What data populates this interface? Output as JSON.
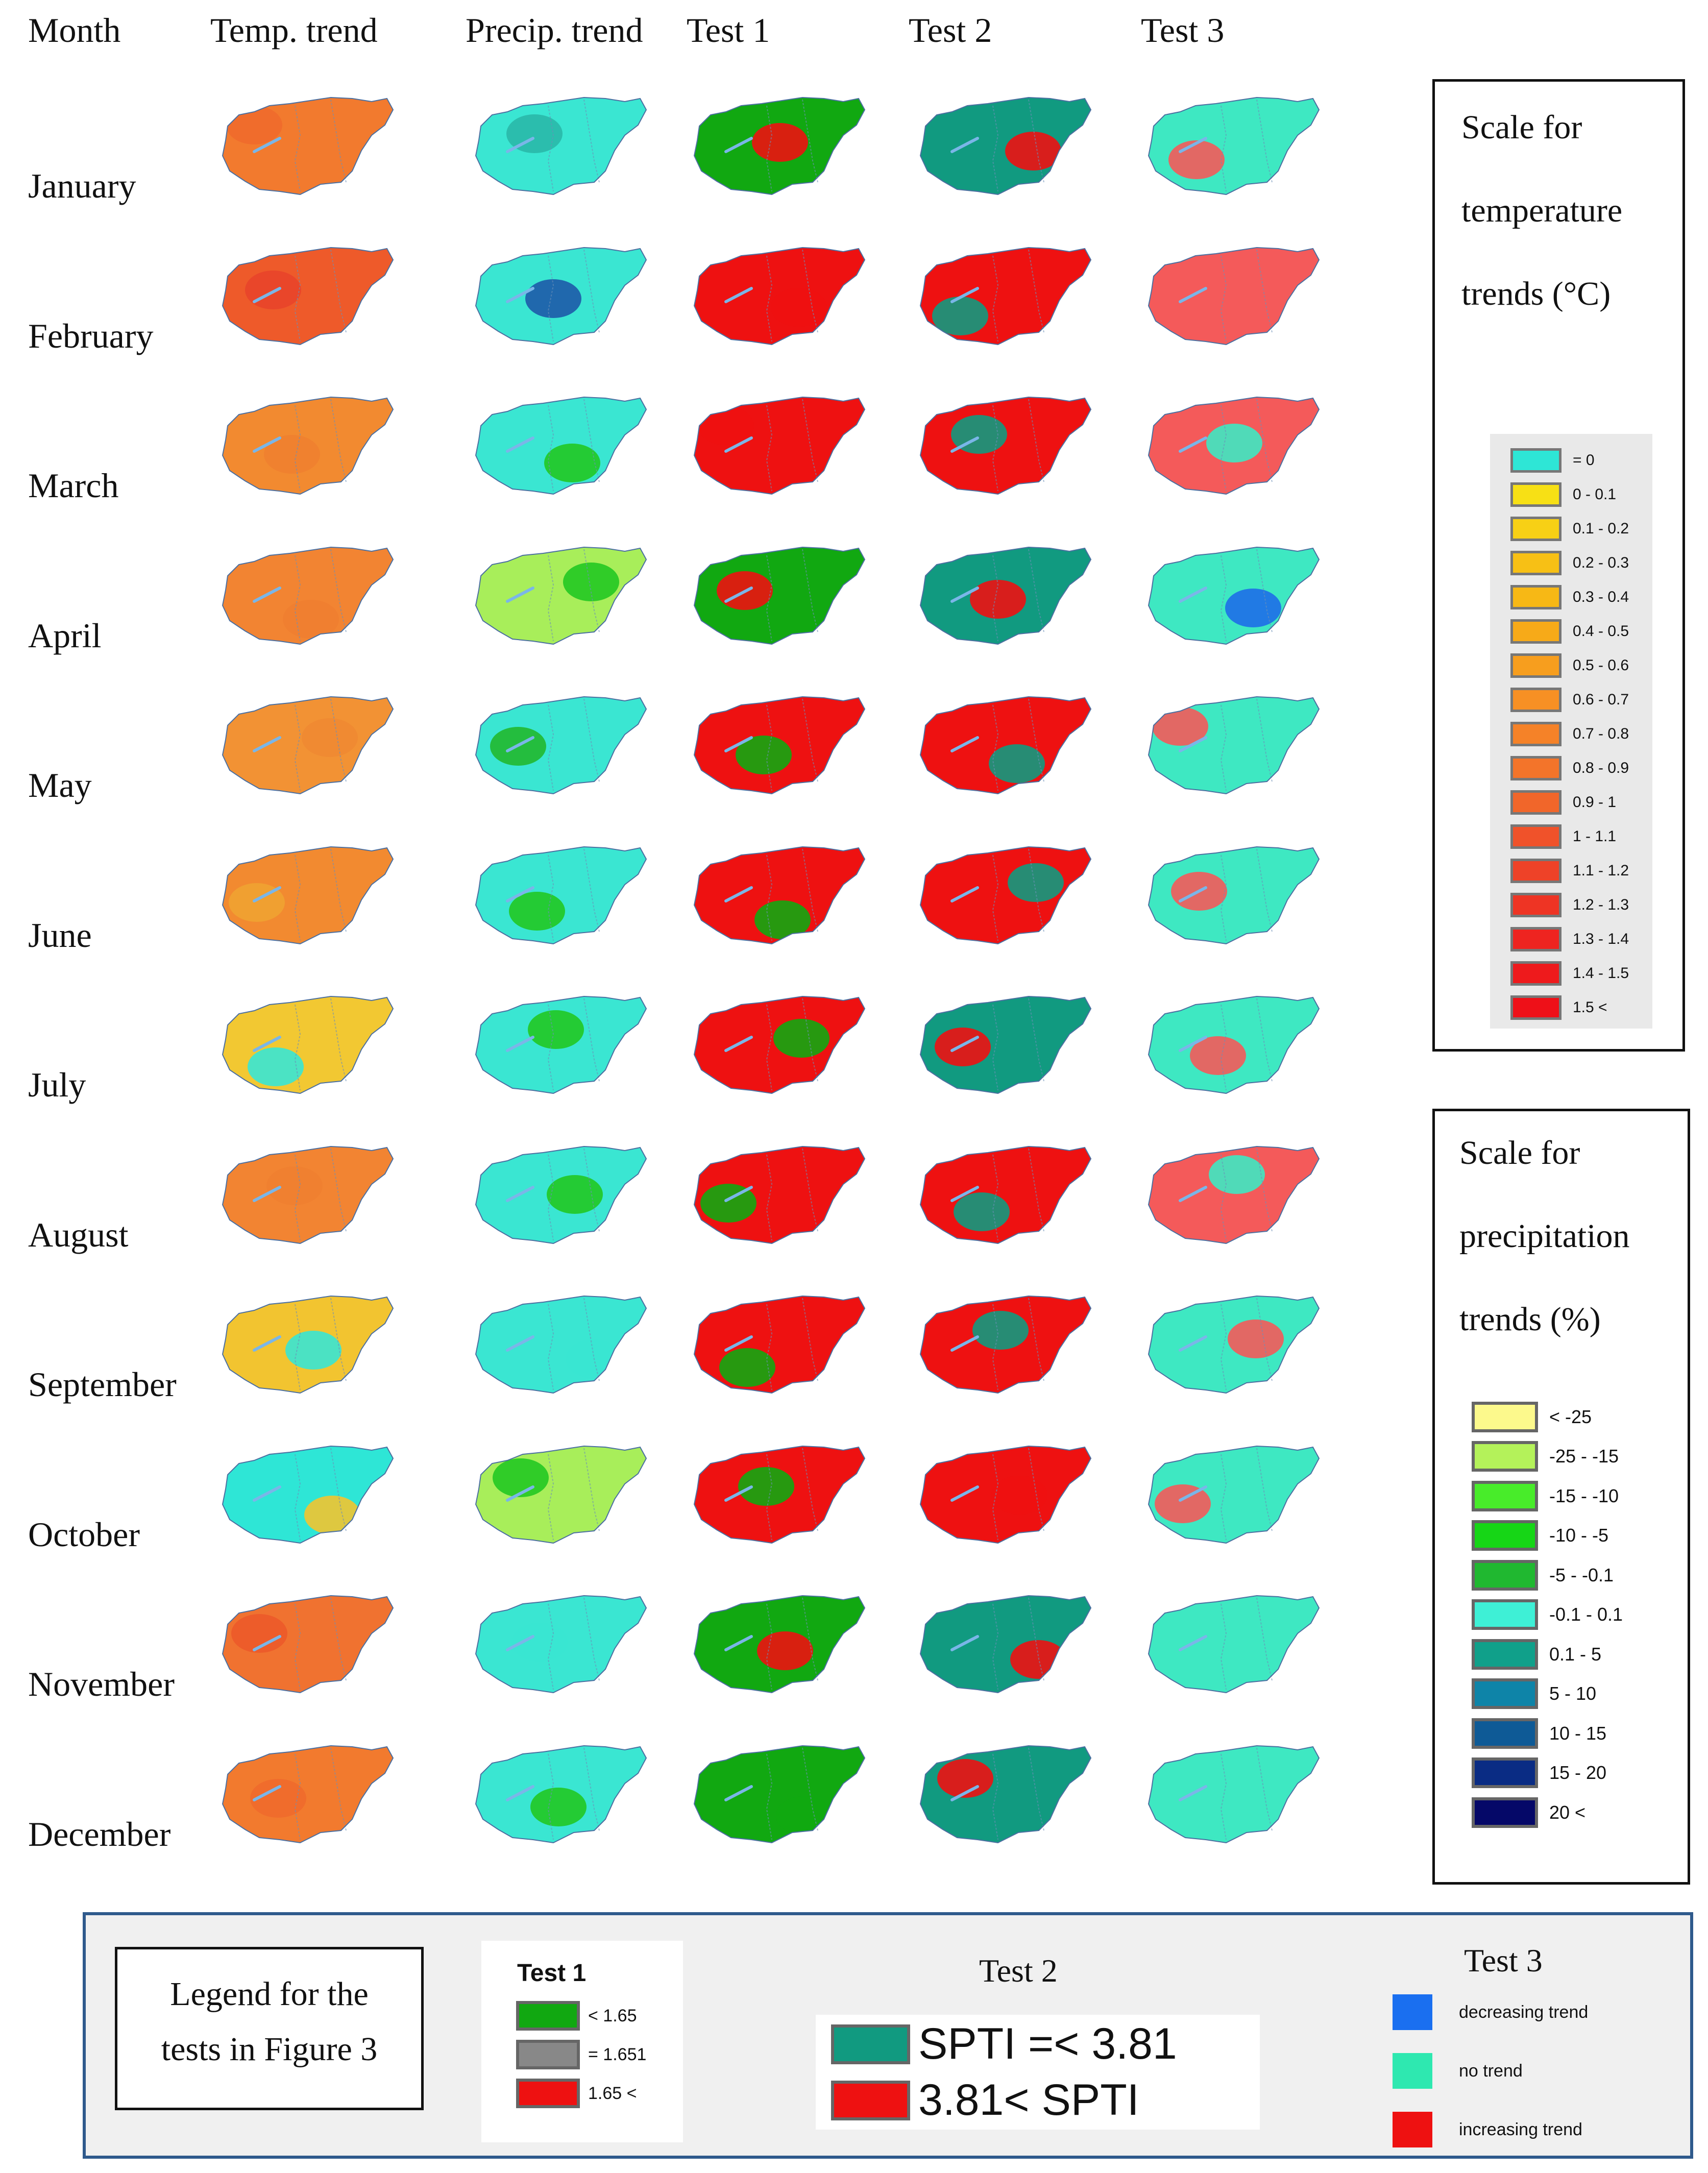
{
  "columns": {
    "month": "Month",
    "temp": "Temp. trend",
    "precip": "Precip. trend",
    "test1": "Test 1",
    "test2": "Test 2",
    "test3": "Test 3"
  },
  "months": [
    "January",
    "February",
    "March",
    "April",
    "May",
    "June",
    "July",
    "August",
    "September",
    "October",
    "November",
    "December"
  ],
  "map_colors": {
    "temp": [
      "#f27a2e",
      "#ee5a2a",
      "#f28a30",
      "#f28432",
      "#f29234",
      "#f28a30",
      "#f2c832",
      "#f28432",
      "#f2c430",
      "#2ee6d6",
      "#f07230",
      "#f27a2e"
    ],
    "temp_accent": [
      "#ef6a2c",
      "#e8442a",
      "#f08030",
      "#f07e30",
      "#f08a32",
      "#f0a232",
      "#38e6d4",
      "#f08030",
      "#38e6d4",
      "#f2c430",
      "#ec5a2a",
      "#ef6a2c"
    ],
    "precip": [
      "#3ae6d2",
      "#3ae6d2",
      "#3ae6d2",
      "#a8ee5a",
      "#3ae6d2",
      "#3ae6d2",
      "#3ae6d2",
      "#3ae6d2",
      "#3ae6d2",
      "#a8ee5a",
      "#3ae6d2",
      "#3ae6d2"
    ],
    "precip_accent": [
      "#2ab8a8",
      "#1e5aa8",
      "#22c822",
      "#22c822",
      "#22b82e",
      "#22c822",
      "#22c822",
      "#22c822",
      "#3ae6d2",
      "#22c822",
      "#3ae6d2",
      "#22c822"
    ],
    "test1": [
      "#11a811",
      "#ee1111",
      "#ee1111",
      "#11a811",
      "#ee1111",
      "#ee1111",
      "#ee1111",
      "#ee1111",
      "#ee1111",
      "#ee1111",
      "#11a811",
      "#11a811"
    ],
    "test1_accent": [
      "#ee1111",
      "#ee1111",
      "#ee1111",
      "#ee1111",
      "#11a811",
      "#11a811",
      "#11a811",
      "#11a811",
      "#11a811",
      "#11a811",
      "#ee1111",
      "#11a811"
    ],
    "test2": [
      "#119a80",
      "#ee1111",
      "#ee1111",
      "#119a80",
      "#ee1111",
      "#ee1111",
      "#119a80",
      "#ee1111",
      "#ee1111",
      "#ee1111",
      "#119a80",
      "#119a80"
    ],
    "test2_accent": [
      "#ee1111",
      "#119a80",
      "#119a80",
      "#ee1111",
      "#119a80",
      "#119a80",
      "#ee1111",
      "#119a80",
      "#119a80",
      "#ee1111",
      "#ee1111",
      "#ee1111"
    ],
    "test3": [
      "#3ee8c2",
      "#f45a5a",
      "#f45a5a",
      "#3ee8c2",
      "#3ee8c2",
      "#3ee8c2",
      "#3ee8c2",
      "#f45a5a",
      "#3ee8c2",
      "#3ee8c2",
      "#3ee8c2",
      "#3ee8c2"
    ],
    "test3_accent": [
      "#f45a5a",
      "#f45a5a",
      "#3ee8c2",
      "#1e6ee8",
      "#f45a5a",
      "#f45a5a",
      "#f45a5a",
      "#3ee8c2",
      "#f45a5a",
      "#f45a5a",
      "#3ee8c2",
      "#3ee8c2"
    ]
  },
  "temp_scale": {
    "title_lines": [
      "Scale for",
      "temperature",
      "trends (°C)"
    ],
    "items": [
      {
        "label": "= 0",
        "color": "#2ee6d6"
      },
      {
        "label": "0 - 0.1",
        "color": "#f7e015"
      },
      {
        "label": "0.1 - 0.2",
        "color": "#f7d015"
      },
      {
        "label": "0.2 - 0.3",
        "color": "#f7c015"
      },
      {
        "label": "0.3 - 0.4",
        "color": "#f7b815"
      },
      {
        "label": "0.4 - 0.5",
        "color": "#f7aa18"
      },
      {
        "label": "0.5 - 0.6",
        "color": "#f79e1e"
      },
      {
        "label": "0.6 - 0.7",
        "color": "#f79024"
      },
      {
        "label": "0.7 - 0.8",
        "color": "#f58228"
      },
      {
        "label": "0.8 - 0.9",
        "color": "#f3742a"
      },
      {
        "label": "0.9 - 1",
        "color": "#f1662a"
      },
      {
        "label": "1 - 1.1",
        "color": "#f0522a"
      },
      {
        "label": "1.1 - 1.2",
        "color": "#ee4228"
      },
      {
        "label": "1.2 - 1.3",
        "color": "#ee3424"
      },
      {
        "label": "1.3 - 1.4",
        "color": "#ee2420"
      },
      {
        "label": "1.4 - 1.5",
        "color": "#ee1a1c"
      },
      {
        "label": "1.5 <",
        "color": "#ee1018"
      }
    ]
  },
  "precip_scale": {
    "title_lines": [
      "Scale for",
      "precipitation",
      "trends (%)"
    ],
    "items": [
      {
        "label": "< -25",
        "color": "#fcf98c"
      },
      {
        "label": "-25 - -15",
        "color": "#b4f25a"
      },
      {
        "label": "-15 - -10",
        "color": "#48ec2a"
      },
      {
        "label": "-10 - -5",
        "color": "#16d616"
      },
      {
        "label": "-5 - -0.1",
        "color": "#20b830"
      },
      {
        "label": "-0.1 - 0.1",
        "color": "#3ef0d6"
      },
      {
        "label": "0.1 - 5",
        "color": "#10a08a"
      },
      {
        "label": "5 - 10",
        "color": "#0e84a8"
      },
      {
        "label": "10 - 15",
        "color": "#0e5a96"
      },
      {
        "label": "15 - 20",
        "color": "#0a2c84"
      },
      {
        "label": "20 <",
        "color": "#050868"
      }
    ]
  },
  "legend": {
    "title_lines": [
      "Legend for the",
      "tests in Figure 3"
    ],
    "test1": {
      "title": "Test 1",
      "items": [
        {
          "label": "< 1.65",
          "color": "#11a811"
        },
        {
          "label": "= 1.651",
          "color": "#888888"
        },
        {
          "label": "1.65 <",
          "color": "#ee1111"
        }
      ]
    },
    "test2": {
      "title": "Test 2",
      "items": [
        {
          "label": "SPTI =< 3.81",
          "color": "#119a80"
        },
        {
          "label": "3.81< SPTI",
          "color": "#ee1111"
        }
      ]
    },
    "test3": {
      "title": "Test 3",
      "items": [
        {
          "label": "decreasing trend",
          "color": "#1a6ff0"
        },
        {
          "label": "no trend",
          "color": "#2ee8b0"
        },
        {
          "label": "increasing trend",
          "color": "#ee1111"
        }
      ]
    }
  }
}
